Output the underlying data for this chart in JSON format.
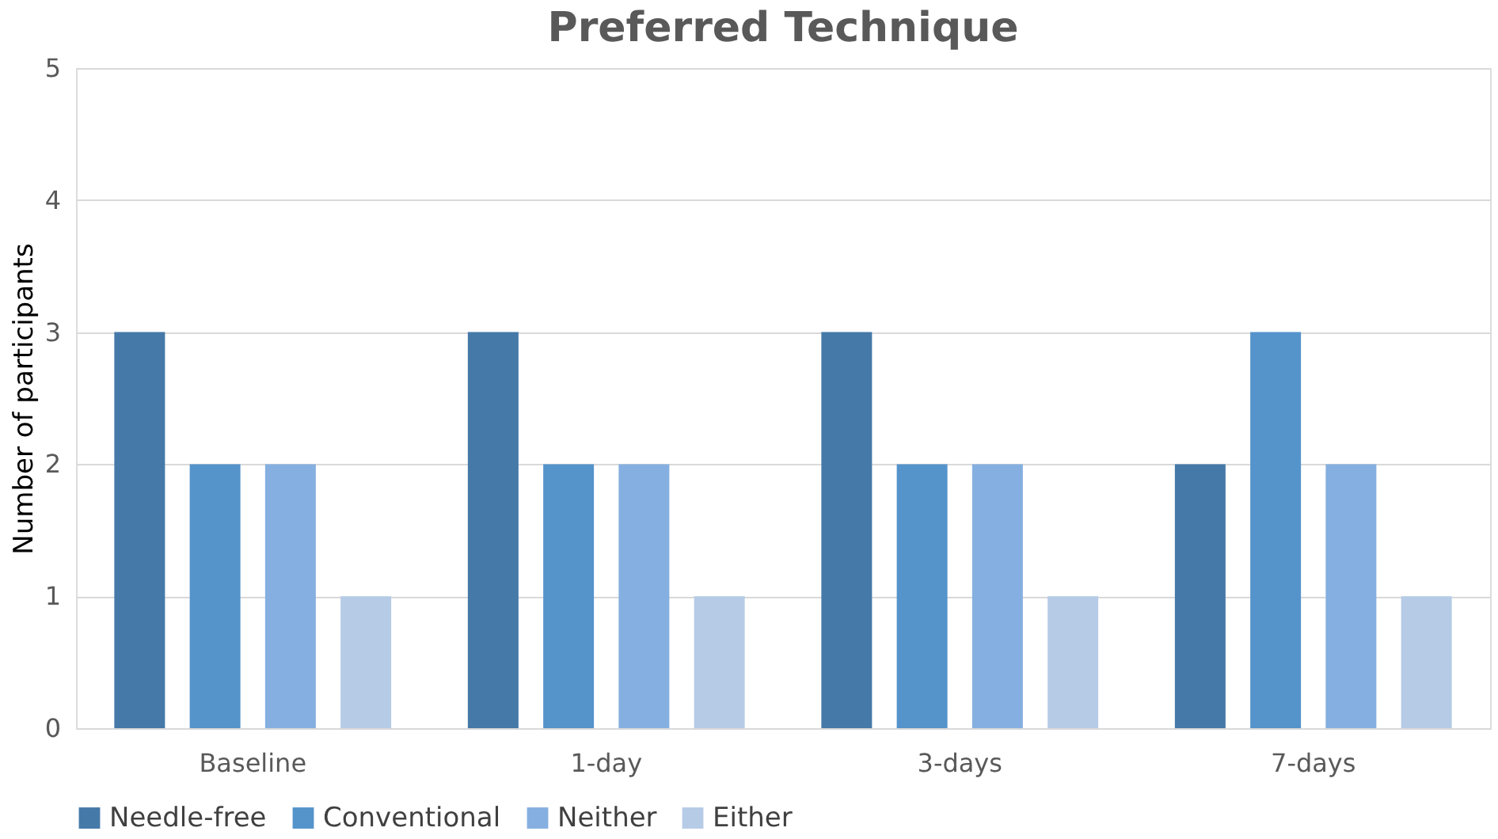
{
  "chart_data": {
    "type": "bar",
    "title": "Preferred Technique",
    "ylabel": "Number of participants",
    "categories": [
      "Baseline",
      "1-day",
      "3-days",
      "7-days"
    ],
    "series": [
      {
        "name": "Needle-free",
        "color": "#4579a8",
        "values": [
          3,
          3,
          3,
          2
        ]
      },
      {
        "name": "Conventional",
        "color": "#5593cb",
        "values": [
          2,
          2,
          2,
          3
        ]
      },
      {
        "name": "Neither",
        "color": "#85afe0",
        "values": [
          2,
          2,
          2,
          2
        ]
      },
      {
        "name": "Either",
        "color": "#b6cbe6",
        "values": [
          1,
          1,
          1,
          1
        ]
      }
    ],
    "ylim": [
      0,
      5
    ],
    "yticks": [
      0,
      1,
      2,
      3,
      4,
      5
    ],
    "grid": "y",
    "legend": "bottom"
  }
}
